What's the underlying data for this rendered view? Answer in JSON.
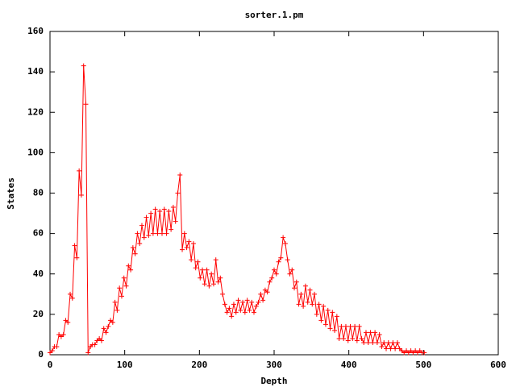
{
  "chart_data": {
    "type": "line",
    "title": "sorter.1.pm",
    "x_label": "Depth",
    "y_label": "States",
    "xlim": [
      0,
      600
    ],
    "xticks": [
      0,
      100,
      200,
      300,
      400,
      500,
      600
    ],
    "ylim": [
      0,
      160
    ],
    "yticks": [
      0,
      20,
      40,
      60,
      80,
      100,
      120,
      140,
      160
    ],
    "series": [
      {
        "color": "#ff0000",
        "x": [
          0,
          3,
          6,
          9,
          12,
          15,
          18,
          21,
          24,
          27,
          30,
          33,
          36,
          39,
          42,
          45,
          48,
          51,
          54,
          57,
          60,
          63,
          66,
          69,
          72,
          75,
          78,
          81,
          84,
          87,
          90,
          93,
          96,
          99,
          102,
          105,
          108,
          111,
          114,
          117,
          120,
          123,
          126,
          129,
          132,
          135,
          138,
          141,
          144,
          147,
          150,
          153,
          156,
          159,
          162,
          165,
          168,
          171,
          174,
          177,
          180,
          183,
          186,
          189,
          192,
          195,
          198,
          201,
          204,
          207,
          210,
          213,
          216,
          219,
          222,
          225,
          228,
          231,
          234,
          237,
          240,
          243,
          246,
          249,
          252,
          255,
          258,
          261,
          264,
          267,
          270,
          273,
          276,
          279,
          282,
          285,
          288,
          291,
          294,
          297,
          300,
          303,
          306,
          309,
          312,
          315,
          318,
          321,
          324,
          327,
          330,
          333,
          336,
          339,
          342,
          345,
          348,
          351,
          354,
          357,
          360,
          363,
          366,
          369,
          372,
          375,
          378,
          381,
          384,
          387,
          390,
          393,
          396,
          399,
          402,
          405,
          408,
          411,
          414,
          417,
          420,
          423,
          426,
          429,
          432,
          435,
          438,
          441,
          444,
          447,
          450,
          453,
          456,
          459,
          462,
          465,
          468,
          471,
          474,
          477,
          480,
          483,
          486,
          489,
          492,
          495,
          498,
          501
        ],
        "values": [
          1,
          2,
          4,
          4,
          10,
          9,
          10,
          17,
          16,
          30,
          28,
          54,
          48,
          91,
          79,
          143,
          124,
          1,
          4,
          5,
          5,
          7,
          8,
          7,
          13,
          11,
          14,
          17,
          16,
          26,
          22,
          33,
          29,
          38,
          34,
          44,
          42,
          53,
          50,
          60,
          55,
          64,
          58,
          68,
          59,
          70,
          60,
          72,
          60,
          71,
          60,
          72,
          60,
          71,
          62,
          73,
          66,
          80,
          89,
          52,
          60,
          53,
          56,
          47,
          55,
          43,
          46,
          38,
          42,
          35,
          42,
          34,
          40,
          35,
          47,
          36,
          38,
          30,
          25,
          21,
          23,
          19,
          25,
          21,
          27,
          22,
          26,
          21,
          27,
          22,
          26,
          21,
          24,
          26,
          30,
          27,
          32,
          31,
          36,
          38,
          42,
          40,
          46,
          48,
          58,
          55,
          47,
          40,
          42,
          33,
          36,
          25,
          30,
          24,
          34,
          26,
          32,
          25,
          30,
          20,
          25,
          17,
          24,
          15,
          22,
          13,
          21,
          12,
          19,
          8,
          14,
          8,
          14,
          7,
          14,
          8,
          14,
          7,
          14,
          8,
          6,
          11,
          6,
          11,
          6,
          11,
          6,
          10,
          4,
          6,
          3,
          6,
          3,
          6,
          3,
          6,
          3,
          2,
          1,
          2,
          1,
          2,
          1,
          2,
          1,
          2,
          1,
          1
        ]
      }
    ]
  }
}
